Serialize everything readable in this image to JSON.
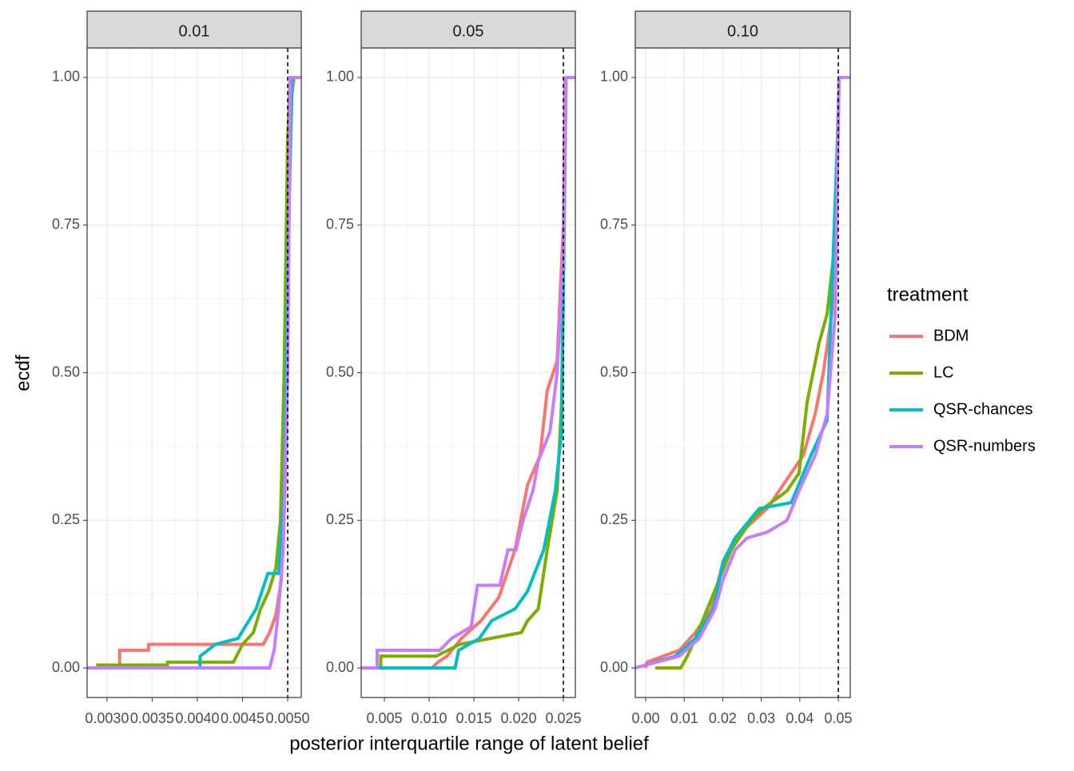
{
  "chart_data": [
    {
      "type": "line",
      "title": "0.01",
      "xlim": [
        0.00278,
        0.00515
      ],
      "ylim": [
        -0.05,
        1.05
      ],
      "xticks": [
        {
          "value": 0.003,
          "label": "0.0030"
        },
        {
          "value": 0.0035,
          "label": "0.0035"
        },
        {
          "value": 0.004,
          "label": "0.0040"
        },
        {
          "value": 0.0045,
          "label": "0.0045"
        },
        {
          "value": 0.005,
          "label": "0.0050"
        }
      ],
      "yticks": [
        {
          "value": 0,
          "label": "0.00"
        },
        {
          "value": 0.25,
          "label": "0.25"
        },
        {
          "value": 0.5,
          "label": "0.50"
        },
        {
          "value": 0.75,
          "label": "0.75"
        },
        {
          "value": 1,
          "label": "1.00"
        }
      ],
      "vline": 0.005,
      "grid": true,
      "series": [
        {
          "name": "BDM",
          "color": "#f8766d",
          "x": [
            0.00305,
            0.00314,
            0.00314,
            0.00346,
            0.00346,
            0.00473,
            0.0048,
            0.00487,
            0.00493,
            0.00497,
            0.005,
            0.00503,
            0.00507
          ],
          "values": [
            0,
            0,
            0.03,
            0.03,
            0.04,
            0.04,
            0.06,
            0.09,
            0.15,
            0.3,
            0.6,
            0.95,
            1
          ]
        },
        {
          "name": "LC",
          "color": "#7cae00",
          "x": [
            0.00288,
            0.00367,
            0.00367,
            0.0044,
            0.0045,
            0.00462,
            0.0047,
            0.00479,
            0.00487,
            0.00492,
            0.00496,
            0.005,
            0.00503
          ],
          "values": [
            0.005,
            0.005,
            0.01,
            0.01,
            0.04,
            0.06,
            0.1,
            0.13,
            0.17,
            0.25,
            0.5,
            0.9,
            1
          ]
        },
        {
          "name": "QSR-chances",
          "color": "#00bfc4",
          "x": [
            0.00403,
            0.00403,
            0.0042,
            0.00445,
            0.00465,
            0.00478,
            0.0049,
            0.00496,
            0.00501,
            0.00505
          ],
          "values": [
            0,
            0.02,
            0.04,
            0.05,
            0.1,
            0.16,
            0.16,
            0.3,
            0.75,
            1
          ]
        },
        {
          "name": "QSR-numbers",
          "color": "#c77cff",
          "x": [
            0.00278,
            0.0048,
            0.00485,
            0.0049,
            0.00495,
            0.005,
            0.00503,
            0.00515
          ],
          "values": [
            0,
            0,
            0.03,
            0.1,
            0.2,
            0.5,
            1,
            1
          ]
        }
      ]
    },
    {
      "type": "line",
      "title": "0.05",
      "xlim": [
        0.00241,
        0.02634
      ],
      "ylim": [
        -0.05,
        1.05
      ],
      "xticks": [
        {
          "value": 0.005,
          "label": "0.005"
        },
        {
          "value": 0.01,
          "label": "0.010"
        },
        {
          "value": 0.015,
          "label": "0.015"
        },
        {
          "value": 0.02,
          "label": "0.020"
        },
        0.025
      ],
      "yticks": [
        {
          "value": 0,
          "label": "0.00"
        },
        {
          "value": 0.25,
          "label": "0.25"
        },
        {
          "value": 0.5,
          "label": "0.50"
        },
        {
          "value": 0.75,
          "label": "0.75"
        },
        {
          "value": 1,
          "label": "1.00"
        }
      ],
      "vline": 0.025,
      "grid": true,
      "series": [
        {
          "name": "BDM",
          "color": "#f8766d",
          "x": [
            0.0103,
            0.011,
            0.012,
            0.0136,
            0.0158,
            0.0178,
            0.0196,
            0.021,
            0.0224,
            0.0232,
            0.0243,
            0.025,
            0.0252
          ],
          "values": [
            0,
            0.01,
            0.02,
            0.05,
            0.08,
            0.12,
            0.2,
            0.31,
            0.36,
            0.47,
            0.52,
            0.75,
            1
          ]
        },
        {
          "name": "LC",
          "color": "#7cae00",
          "x": [
            0.0046,
            0.0046,
            0.0108,
            0.0134,
            0.0203,
            0.021,
            0.0222,
            0.0232,
            0.0243,
            0.0248,
            0.025,
            0.0253
          ],
          "values": [
            0,
            0.02,
            0.02,
            0.04,
            0.06,
            0.08,
            0.1,
            0.2,
            0.3,
            0.45,
            0.7,
            1
          ]
        },
        {
          "name": "QSR-chances",
          "color": "#00bfc4",
          "x": [
            0.00241,
            0.0129,
            0.0133,
            0.0156,
            0.017,
            0.0196,
            0.021,
            0.0228,
            0.0241,
            0.0248,
            0.0251,
            0.0253
          ],
          "values": [
            0,
            0,
            0.03,
            0.05,
            0.08,
            0.1,
            0.13,
            0.2,
            0.3,
            0.4,
            0.75,
            1
          ]
        },
        {
          "name": "QSR-numbers",
          "color": "#c77cff",
          "x": [
            0.00241,
            0.0042,
            0.0042,
            0.0112,
            0.0125,
            0.0147,
            0.0154,
            0.0179,
            0.0188,
            0.0197,
            0.0205,
            0.0216,
            0.0222,
            0.0235,
            0.0243,
            0.025,
            0.0253,
            0.0263
          ],
          "values": [
            0,
            0,
            0.03,
            0.03,
            0.05,
            0.07,
            0.14,
            0.14,
            0.2,
            0.2,
            0.25,
            0.3,
            0.35,
            0.4,
            0.5,
            0.7,
            1,
            1
          ]
        }
      ]
    },
    {
      "type": "line",
      "title": "0.10",
      "xlim": [
        -0.0027,
        0.0531
      ],
      "ylim": [
        -0.05,
        1.05
      ],
      "xticks": [
        {
          "value": 0,
          "label": "0.00"
        },
        0.01,
        {
          "value": 0.02,
          "label": "0.02"
        },
        0.03,
        0.04,
        0.05
      ],
      "yticks": [
        {
          "value": 0,
          "label": "0.00"
        },
        {
          "value": 0.25,
          "label": "0.25"
        },
        {
          "value": 0.5,
          "label": "0.50"
        },
        {
          "value": 0.75,
          "label": "0.75"
        },
        {
          "value": 1,
          "label": "1.00"
        }
      ],
      "vline": 0.05,
      "grid": true,
      "series": [
        {
          "name": "BDM",
          "color": "#f8766d",
          "x": [
            0,
            0.0004,
            0.0087,
            0.0129,
            0.017,
            0.0201,
            0.0232,
            0.0315,
            0.0409,
            0.044,
            0.0461,
            0.0492,
            0.0502
          ],
          "values": [
            0,
            0.01,
            0.03,
            0.06,
            0.1,
            0.18,
            0.22,
            0.27,
            0.36,
            0.43,
            0.5,
            0.64,
            1
          ]
        },
        {
          "name": "LC",
          "color": "#7cae00",
          "x": [
            0.0025,
            0.0091,
            0.0108,
            0.0129,
            0.016,
            0.0191,
            0.0222,
            0.0274,
            0.0305,
            0.0367,
            0.0398,
            0.0419,
            0.045,
            0.0471,
            0.0488,
            0.0496,
            0.0502
          ],
          "values": [
            0,
            0,
            0.02,
            0.05,
            0.1,
            0.15,
            0.2,
            0.25,
            0.27,
            0.3,
            0.33,
            0.45,
            0.55,
            0.6,
            0.7,
            0.85,
            1
          ]
        },
        {
          "name": "QSR-chances",
          "color": "#00bfc4",
          "x": [
            -0.0027,
            0.0077,
            0.0129,
            0.0176,
            0.0201,
            0.0232,
            0.0295,
            0.0378,
            0.0429,
            0.0471,
            0.0498,
            0.0502
          ],
          "values": [
            0,
            0.02,
            0.05,
            0.1,
            0.18,
            0.22,
            0.27,
            0.28,
            0.36,
            0.42,
            0.9,
            1
          ]
        },
        {
          "name": "QSR-numbers",
          "color": "#c77cff",
          "x": [
            -0.0027,
            0.0087,
            0.0139,
            0.018,
            0.0201,
            0.0232,
            0.0263,
            0.0315,
            0.0367,
            0.0398,
            0.044,
            0.0471,
            0.0492,
            0.0502,
            0.0531
          ],
          "values": [
            0,
            0.02,
            0.05,
            0.1,
            0.15,
            0.2,
            0.22,
            0.23,
            0.25,
            0.3,
            0.36,
            0.43,
            0.6,
            1,
            1
          ]
        }
      ]
    }
  ],
  "xlabel": "posterior interquartile range of latent belief",
  "ylabel": "ecdf",
  "legend_title": "treatment"
}
